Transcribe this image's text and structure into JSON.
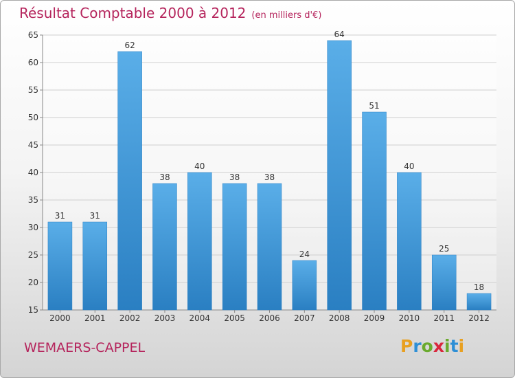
{
  "header": {
    "title": "Résultat Comptable 2000 à 2012",
    "subtitle": "(en milliers d'€)"
  },
  "footer": {
    "commune": "WEMAERS-CAPPEL",
    "logo_letters": [
      "P",
      "r",
      "o",
      "x",
      "i",
      "t",
      "i"
    ],
    "logo_colors": [
      "#e8a020",
      "#2e8fd6",
      "#6aaa2e",
      "#d9263c",
      "#6aaa2e",
      "#2e8fd6",
      "#e8a020"
    ]
  },
  "colors": {
    "bar_light": "#5aaee8",
    "bar_dark": "#2a7fc2",
    "title": "#b5245c",
    "grid": "#cfcfcf",
    "axis_text": "#333333"
  },
  "chart_data": {
    "type": "bar",
    "title": "Résultat Comptable 2000 à 2012",
    "subtitle": "(en milliers d'€)",
    "xlabel": "",
    "ylabel": "",
    "categories": [
      "2000",
      "2001",
      "2002",
      "2003",
      "2004",
      "2005",
      "2006",
      "2007",
      "2008",
      "2009",
      "2010",
      "2011",
      "2012"
    ],
    "values": [
      31,
      31,
      62,
      38,
      40,
      38,
      38,
      24,
      64,
      51,
      40,
      25,
      18
    ],
    "ylim": [
      15,
      65
    ],
    "yticks": [
      15,
      20,
      25,
      30,
      35,
      40,
      45,
      50,
      55,
      60,
      65
    ],
    "grid": true
  }
}
